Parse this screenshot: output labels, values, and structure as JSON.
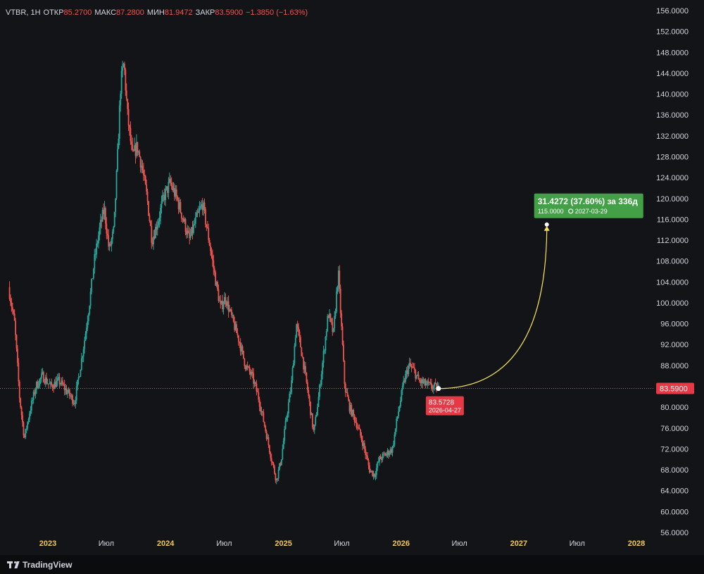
{
  "legend": {
    "symbol": "VTBR, 1Н",
    "open_label": "ОТКР",
    "open": "85.2700",
    "high_label": "МАКС",
    "high": "87.2800",
    "low_label": "МИН",
    "low": "81.9472",
    "close_label": "ЗАКР",
    "close": "83.5900",
    "change": "−1.3850 (−1.63%)"
  },
  "brand": {
    "name": "TradingView"
  },
  "colors": {
    "background": "#131417",
    "up": "#26a69a",
    "down": "#ef5350",
    "projection": "#f5e25a",
    "target_box": "#43a047",
    "axis_text": "#d1d4dc",
    "year_text": "#f0c75a"
  },
  "chart_data": {
    "type": "candlestick",
    "symbol": "VTBR",
    "ylim": [
      56,
      156
    ],
    "yticks": [
      "156.0000",
      "152.0000",
      "148.0000",
      "144.0000",
      "140.0000",
      "136.0000",
      "132.0000",
      "128.0000",
      "124.0000",
      "120.0000",
      "116.0000",
      "112.0000",
      "108.0000",
      "104.0000",
      "100.0000",
      "96.0000",
      "92.0000",
      "88.0000",
      "84.0000",
      "80.0000",
      "76.0000",
      "72.0000",
      "68.0000",
      "64.0000",
      "60.0000",
      "56.0000"
    ],
    "x_ticks": [
      {
        "label": "2023",
        "date": "2023-01-01",
        "kind": "year"
      },
      {
        "label": "Июл",
        "date": "2023-07-01",
        "kind": "month"
      },
      {
        "label": "2024",
        "date": "2024-01-01",
        "kind": "year"
      },
      {
        "label": "Июл",
        "date": "2024-07-01",
        "kind": "month"
      },
      {
        "label": "2025",
        "date": "2025-01-01",
        "kind": "year"
      },
      {
        "label": "Июл",
        "date": "2025-07-01",
        "kind": "month"
      },
      {
        "label": "2026",
        "date": "2026-01-01",
        "kind": "year"
      },
      {
        "label": "Июл",
        "date": "2026-07-01",
        "kind": "month"
      },
      {
        "label": "2027",
        "date": "2027-01-01",
        "kind": "year"
      },
      {
        "label": "Июл",
        "date": "2027-07-01",
        "kind": "month"
      },
      {
        "label": "2028",
        "date": "2028-01-01",
        "kind": "year"
      }
    ],
    "last_price": {
      "label": "83.5900",
      "value": 83.59
    },
    "start_point": {
      "price_label": "83.5728",
      "date_label": "2026-04-27",
      "date": "2026-04-27",
      "value": 83.5728
    },
    "target": {
      "headline": "31.4272 (37.60%) за 336д",
      "price_label": "115.0000",
      "date_label": "2027-03-29",
      "date": "2027-03-29",
      "value": 115.0
    },
    "price_path": [
      [
        "2022-09-01",
        103
      ],
      [
        "2022-09-20",
        96
      ],
      [
        "2022-10-05",
        82
      ],
      [
        "2022-10-20",
        74
      ],
      [
        "2022-11-05",
        79
      ],
      [
        "2022-11-25",
        84
      ],
      [
        "2022-12-15",
        86
      ],
      [
        "2023-01-10",
        84
      ],
      [
        "2023-02-05",
        85
      ],
      [
        "2023-03-01",
        83
      ],
      [
        "2023-03-25",
        81
      ],
      [
        "2023-04-10",
        87
      ],
      [
        "2023-04-25",
        93
      ],
      [
        "2023-05-10",
        100
      ],
      [
        "2023-05-25",
        108
      ],
      [
        "2023-06-10",
        114
      ],
      [
        "2023-06-25",
        118
      ],
      [
        "2023-07-10",
        110
      ],
      [
        "2023-07-25",
        114
      ],
      [
        "2023-08-05",
        128
      ],
      [
        "2023-08-15",
        142
      ],
      [
        "2023-08-25",
        146
      ],
      [
        "2023-09-05",
        136
      ],
      [
        "2023-09-20",
        128
      ],
      [
        "2023-10-05",
        130
      ],
      [
        "2023-10-20",
        126
      ],
      [
        "2023-11-05",
        120
      ],
      [
        "2023-11-20",
        112
      ],
      [
        "2023-12-10",
        116
      ],
      [
        "2023-12-25",
        120
      ],
      [
        "2024-01-15",
        123
      ],
      [
        "2024-02-05",
        120
      ],
      [
        "2024-02-25",
        116
      ],
      [
        "2024-03-15",
        112
      ],
      [
        "2024-04-05",
        116
      ],
      [
        "2024-04-25",
        119
      ],
      [
        "2024-05-15",
        112
      ],
      [
        "2024-06-05",
        104
      ],
      [
        "2024-06-20",
        99
      ],
      [
        "2024-07-05",
        101
      ],
      [
        "2024-07-25",
        97
      ],
      [
        "2024-08-15",
        93
      ],
      [
        "2024-09-05",
        88
      ],
      [
        "2024-09-25",
        86
      ],
      [
        "2024-10-15",
        82
      ],
      [
        "2024-11-05",
        76
      ],
      [
        "2024-11-25",
        70
      ],
      [
        "2024-12-10",
        66
      ],
      [
        "2024-12-25",
        70
      ],
      [
        "2025-01-10",
        78
      ],
      [
        "2025-01-25",
        84
      ],
      [
        "2025-02-10",
        96
      ],
      [
        "2025-02-25",
        91
      ],
      [
        "2025-03-15",
        84
      ],
      [
        "2025-04-05",
        75
      ],
      [
        "2025-04-20",
        82
      ],
      [
        "2025-05-05",
        90
      ],
      [
        "2025-05-20",
        98
      ],
      [
        "2025-06-05",
        94
      ],
      [
        "2025-06-20",
        106
      ],
      [
        "2025-07-01",
        94
      ],
      [
        "2025-07-10",
        84
      ],
      [
        "2025-07-25",
        80
      ],
      [
        "2025-08-15",
        77
      ],
      [
        "2025-09-05",
        73
      ],
      [
        "2025-09-25",
        68
      ],
      [
        "2025-10-10",
        67
      ],
      [
        "2025-10-25",
        70
      ],
      [
        "2025-11-15",
        71
      ],
      [
        "2025-12-05",
        72
      ],
      [
        "2025-12-20",
        78
      ],
      [
        "2026-01-10",
        85
      ],
      [
        "2026-01-25",
        88
      ],
      [
        "2026-02-10",
        87
      ],
      [
        "2026-02-25",
        85
      ],
      [
        "2026-03-15",
        84.5
      ],
      [
        "2026-04-01",
        84
      ],
      [
        "2026-04-27",
        83.59
      ]
    ]
  }
}
